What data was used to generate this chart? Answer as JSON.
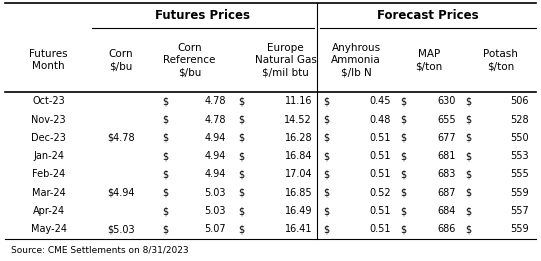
{
  "title_futures": "Futures Prices",
  "title_forecast": "Forecast Prices",
  "source": "Source: CME Settlements on 8/31/2023",
  "rows": [
    [
      "Oct-23",
      "",
      "$",
      "4.78",
      "$",
      "11.16",
      "$",
      "0.45",
      "$",
      "630",
      "$",
      "506"
    ],
    [
      "Nov-23",
      "",
      "$",
      "4.78",
      "$",
      "14.52",
      "$",
      "0.48",
      "$",
      "655",
      "$",
      "528"
    ],
    [
      "Dec-23",
      "$4.78",
      "$",
      "4.94",
      "$",
      "16.28",
      "$",
      "0.51",
      "$",
      "677",
      "$",
      "550"
    ],
    [
      "Jan-24",
      "",
      "$",
      "4.94",
      "$",
      "16.84",
      "$",
      "0.51",
      "$",
      "681",
      "$",
      "553"
    ],
    [
      "Feb-24",
      "",
      "$",
      "4.94",
      "$",
      "17.04",
      "$",
      "0.51",
      "$",
      "683",
      "$",
      "555"
    ],
    [
      "Mar-24",
      "$4.94",
      "$",
      "5.03",
      "$",
      "16.85",
      "$",
      "0.52",
      "$",
      "687",
      "$",
      "559"
    ],
    [
      "Apr-24",
      "",
      "$",
      "5.03",
      "$",
      "16.49",
      "$",
      "0.51",
      "$",
      "684",
      "$",
      "557"
    ],
    [
      "May-24",
      "$5.03",
      "$",
      "5.07",
      "$",
      "16.41",
      "$",
      "0.51",
      "$",
      "686",
      "$",
      "559"
    ]
  ],
  "bg_color": "#ffffff",
  "figsize": [
    5.41,
    2.61
  ],
  "dpi": 100,
  "font_size": 7.0,
  "header_font_size": 7.5,
  "group_font_size": 8.5
}
